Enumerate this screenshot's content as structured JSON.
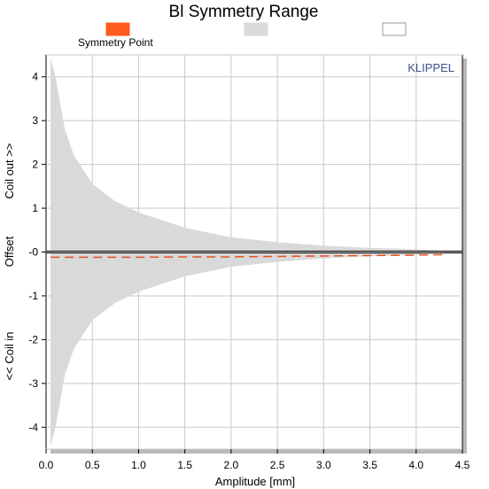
{
  "chart_data": {
    "type": "area",
    "title": "Bl Symmetry Range",
    "xlabel": "Amplitude [mm]",
    "ylabel_segments": [
      "<< Coil in",
      "Offset",
      "Coil out >>"
    ],
    "xlim": [
      0,
      4.5
    ],
    "ylim": [
      -4.5,
      4.5
    ],
    "x_ticks": [
      "0.0",
      "0.5",
      "1.0",
      "1.5",
      "2.0",
      "2.5",
      "3.0",
      "3.5",
      "4.0",
      "4.5"
    ],
    "y_ticks": [
      "-4",
      "-3",
      "-2",
      "-1",
      "-0",
      "1",
      "2",
      "3",
      "4"
    ],
    "grid": true,
    "legend_placement": "top",
    "legend": [
      {
        "name": "Symmetry Point",
        "color": "#ff5a1e",
        "style": "filled"
      },
      {
        "name": "",
        "color": "#d9d9d9",
        "style": "filled"
      },
      {
        "name": "",
        "color": "#ffffff",
        "style": "outline"
      }
    ],
    "series": [
      {
        "name": "Symmetry Point",
        "color": "#e85020",
        "style": "dashed",
        "x": [
          0.05,
          0.5,
          1.0,
          1.5,
          2.0,
          2.5,
          3.0,
          3.5,
          4.0,
          4.3
        ],
        "y": [
          -0.12,
          -0.12,
          -0.12,
          -0.11,
          -0.11,
          -0.1,
          -0.09,
          -0.08,
          -0.07,
          -0.06
        ]
      },
      {
        "name": "Range",
        "color": "#d9d9d9",
        "style": "band",
        "x": [
          0.05,
          0.1,
          0.2,
          0.3,
          0.5,
          0.75,
          1.0,
          1.5,
          2.0,
          2.5,
          3.0,
          3.5,
          4.0,
          4.3
        ],
        "upper": [
          4.4,
          4.0,
          2.8,
          2.2,
          1.55,
          1.15,
          0.9,
          0.55,
          0.33,
          0.22,
          0.14,
          0.09,
          0.06,
          0.02
        ],
        "lower": [
          -4.4,
          -4.0,
          -2.8,
          -2.2,
          -1.55,
          -1.15,
          -0.9,
          -0.55,
          -0.33,
          -0.22,
          -0.14,
          -0.09,
          -0.06,
          -0.02
        ]
      },
      {
        "name": "Zero",
        "color": "#000000",
        "style": "line",
        "x": [
          0,
          4.5
        ],
        "y": [
          0,
          0
        ]
      }
    ],
    "watermark": "KLIPPEL"
  }
}
